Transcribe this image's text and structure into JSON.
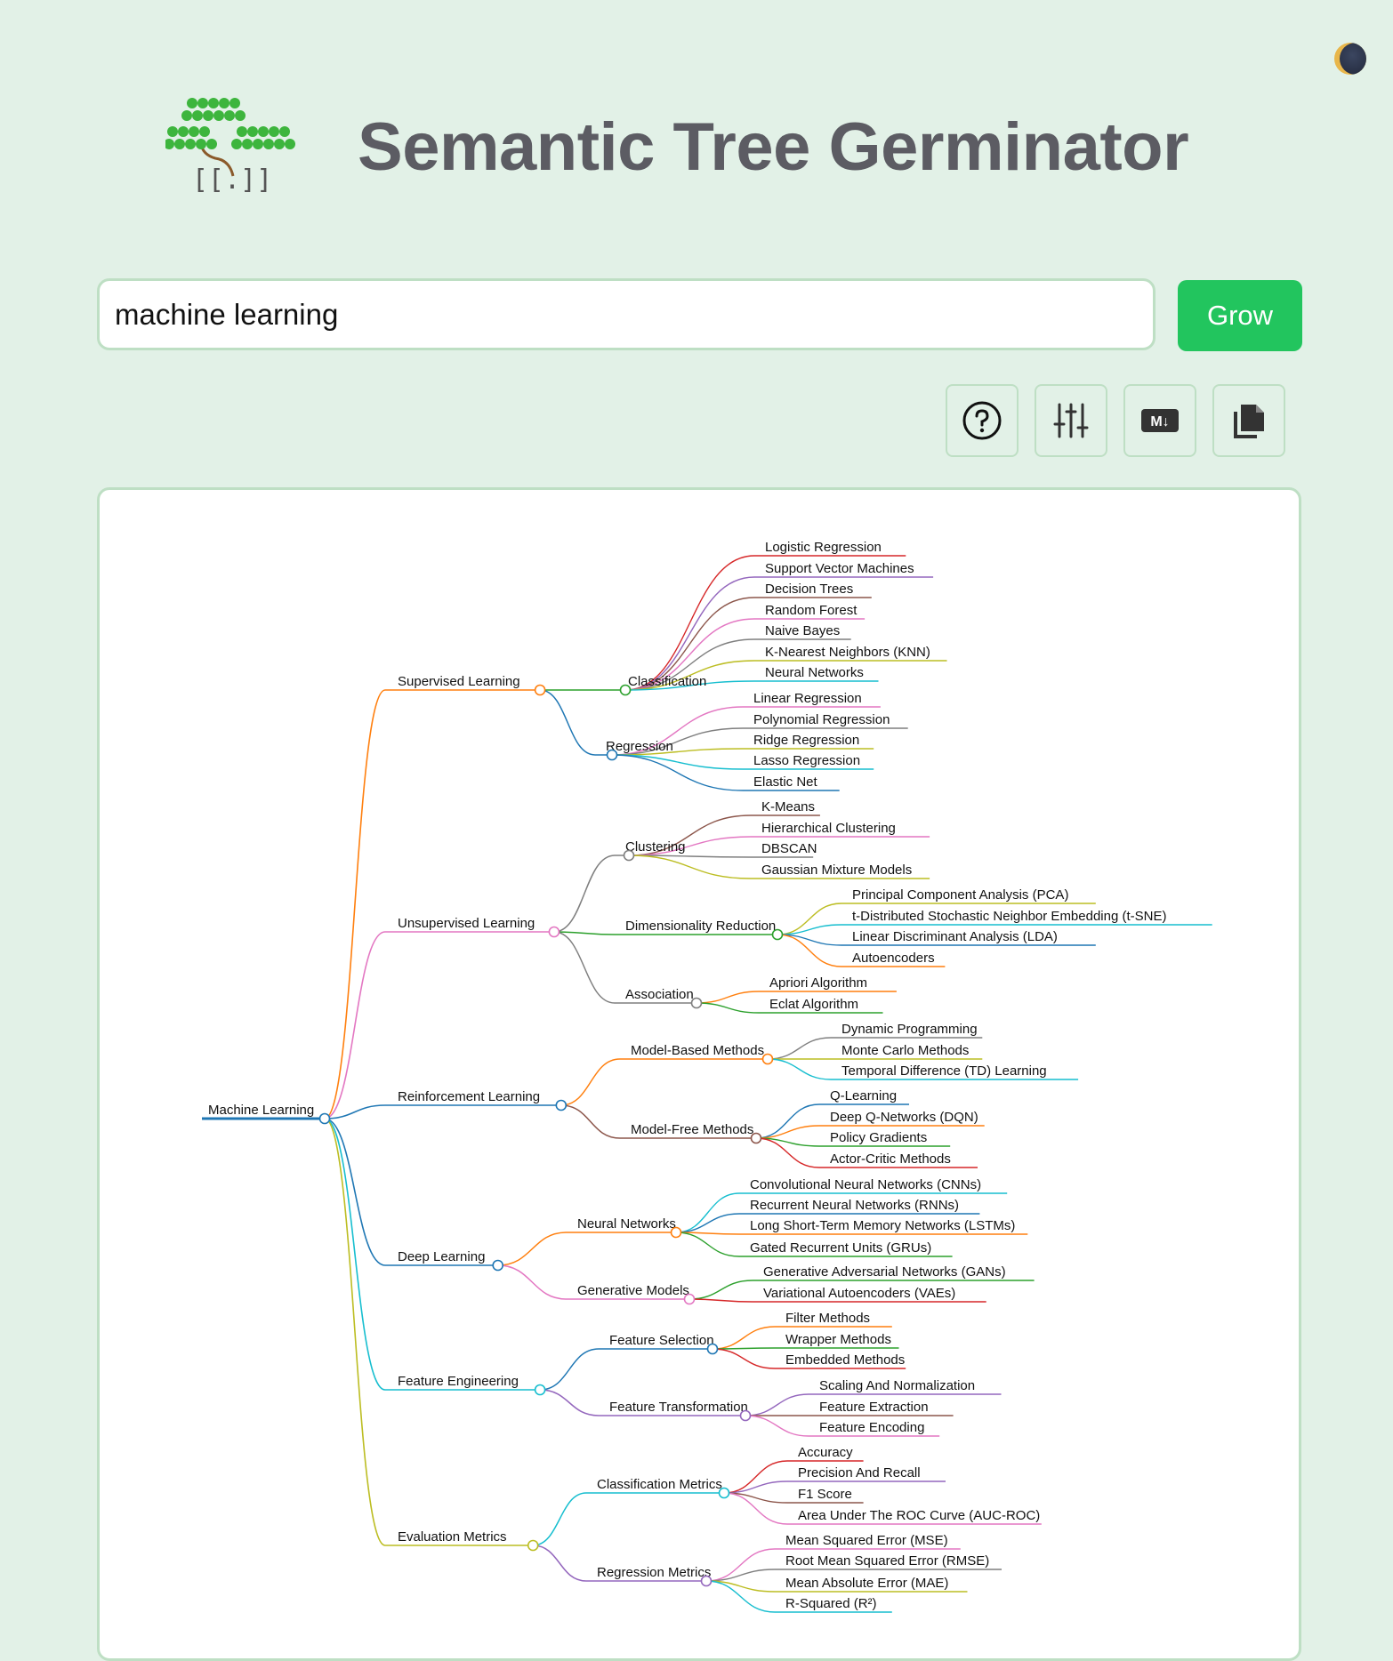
{
  "header": {
    "title": "Semantic Tree Germinator",
    "logo_text": "[[.]]"
  },
  "search": {
    "value": "machine learning",
    "button_label": "Grow"
  },
  "toolbar": {
    "icons": [
      "help-icon",
      "settings-sliders-icon",
      "markdown-download-icon",
      "copy-icon"
    ],
    "markdown_badge": "M↓"
  },
  "colors": {
    "background": "#e2f1e7",
    "accent": "#22c55e",
    "border": "#bedfc4",
    "title": "#5c5c63"
  },
  "mindmap": {
    "root": "Machine Learning",
    "branches": [
      {
        "label": "Supervised Learning",
        "children": [
          {
            "label": "Classification",
            "children": [
              "Logistic Regression",
              "Support Vector Machines",
              "Decision Trees",
              "Random Forest",
              "Naive Bayes",
              "K-Nearest Neighbors (KNN)",
              "Neural Networks"
            ]
          },
          {
            "label": "Regression",
            "children": [
              "Linear Regression",
              "Polynomial Regression",
              "Ridge Regression",
              "Lasso Regression",
              "Elastic Net"
            ]
          }
        ]
      },
      {
        "label": "Unsupervised Learning",
        "children": [
          {
            "label": "Clustering",
            "children": [
              "K-Means",
              "Hierarchical Clustering",
              "DBSCAN",
              "Gaussian Mixture Models"
            ]
          },
          {
            "label": "Dimensionality Reduction",
            "children": [
              "Principal Component Analysis (PCA)",
              "t-Distributed Stochastic Neighbor Embedding (t-SNE)",
              "Linear Discriminant Analysis (LDA)",
              "Autoencoders"
            ]
          },
          {
            "label": "Association",
            "children": [
              "Apriori Algorithm",
              "Eclat Algorithm"
            ]
          }
        ]
      },
      {
        "label": "Reinforcement Learning",
        "children": [
          {
            "label": "Model-Based Methods",
            "children": [
              "Dynamic Programming",
              "Monte Carlo Methods",
              "Temporal Difference (TD) Learning"
            ]
          },
          {
            "label": "Model-Free Methods",
            "children": [
              "Q-Learning",
              "Deep Q-Networks (DQN)",
              "Policy Gradients",
              "Actor-Critic Methods"
            ]
          }
        ]
      },
      {
        "label": "Deep Learning",
        "children": [
          {
            "label": "Neural Networks",
            "children": [
              "Convolutional Neural Networks (CNNs)",
              "Recurrent Neural Networks (RNNs)",
              "Long Short-Term Memory Networks (LSTMs)",
              "Gated Recurrent Units (GRUs)"
            ]
          },
          {
            "label": "Generative Models",
            "children": [
              "Generative Adversarial Networks (GANs)",
              "Variational Autoencoders (VAEs)"
            ]
          }
        ]
      },
      {
        "label": "Feature Engineering",
        "children": [
          {
            "label": "Feature Selection",
            "children": [
              "Filter Methods",
              "Wrapper Methods",
              "Embedded Methods"
            ]
          },
          {
            "label": "Feature Transformation",
            "children": [
              "Scaling And Normalization",
              "Feature Extraction",
              "Feature Encoding"
            ]
          }
        ]
      },
      {
        "label": "Evaluation Metrics",
        "children": [
          {
            "label": "Classification Metrics",
            "children": [
              "Accuracy",
              "Precision And Recall",
              "F1 Score",
              "Area Under The ROC Curve (AUC-ROC)"
            ]
          },
          {
            "label": "Regression Metrics",
            "children": [
              "Mean Squared Error (MSE)",
              "Root Mean Squared Error (RMSE)",
              "Mean Absolute Error (MAE)",
              "R-Squared (R²)"
            ]
          }
        ]
      }
    ]
  }
}
